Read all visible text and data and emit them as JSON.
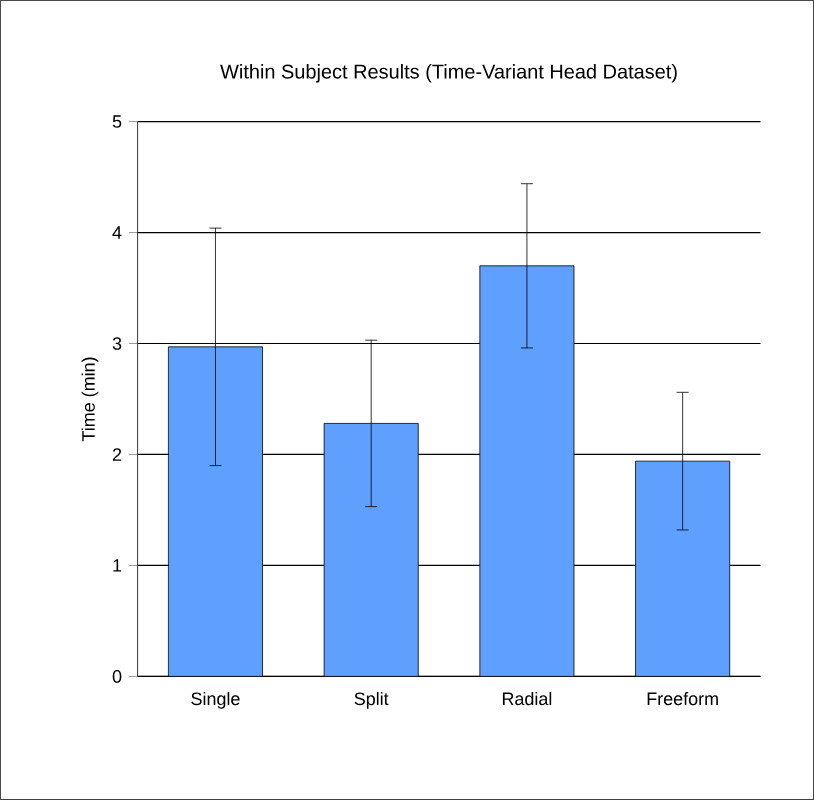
{
  "chart_data": {
    "type": "bar",
    "title": "Within Subject Results (Time-Variant Head Dataset)",
    "ylabel": "Time (min)",
    "categories": [
      "Single",
      "Split",
      "Radial",
      "Freeform"
    ],
    "values": [
      2.97,
      2.28,
      3.7,
      1.94
    ],
    "errors": [
      1.07,
      0.75,
      0.74,
      0.62
    ],
    "color": "#5fa0ff",
    "ylim": [
      0,
      5
    ],
    "yticks": [
      0,
      1,
      2,
      3,
      4,
      5
    ],
    "grid": "y"
  }
}
